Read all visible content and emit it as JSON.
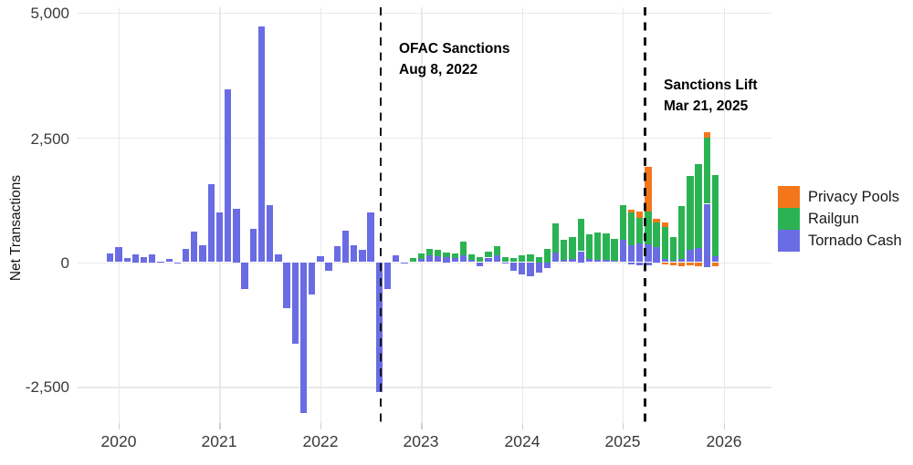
{
  "chart_data": {
    "type": "bar",
    "stacked": true,
    "title": "",
    "ylabel": "Net Transactions",
    "xlabel": "",
    "ylim": [
      -3300,
      5050
    ],
    "grid": true,
    "legend_position": "right",
    "yticks": [
      5000,
      2500,
      0,
      -2500
    ],
    "ytick_labels": [
      "5,000",
      "2,500",
      "0",
      "-2,500"
    ],
    "xticks": [
      2020,
      2021,
      2022,
      2023,
      2024,
      2025,
      2026
    ],
    "legend": [
      {
        "key": "pp",
        "label": "Privacy Pools",
        "color": "#F3761B"
      },
      {
        "key": "rg",
        "label": "Railgun",
        "color": "#2BB353"
      },
      {
        "key": "tc",
        "label": "Tornado Cash",
        "color": "#6A6CE3"
      }
    ],
    "annotations": [
      {
        "name": "ofac-sanctions",
        "date": "2022-08-08",
        "label_line1": "OFAC Sanctions",
        "label_line2": "Aug 8, 2022"
      },
      {
        "name": "sanctions-lift",
        "date": "2025-03-21",
        "label_line1": "Sanctions Lift",
        "label_line2": "Mar 21, 2025"
      }
    ],
    "series_order_bottom_to_top": [
      "tc",
      "rg",
      "pp"
    ],
    "months": [
      {
        "m": "2019-12",
        "segments": [
          [
            "tc",
            170
          ]
        ]
      },
      {
        "m": "2020-01",
        "segments": [
          [
            "tc",
            300
          ]
        ]
      },
      {
        "m": "2020-02",
        "segments": [
          [
            "tc",
            80
          ]
        ]
      },
      {
        "m": "2020-03",
        "segments": [
          [
            "tc",
            155
          ]
        ]
      },
      {
        "m": "2020-04",
        "segments": [
          [
            "tc",
            110
          ]
        ]
      },
      {
        "m": "2020-05",
        "segments": [
          [
            "tc",
            165
          ]
        ]
      },
      {
        "m": "2020-06",
        "segments": [
          [
            "tc",
            15
          ]
        ]
      },
      {
        "m": "2020-07",
        "segments": [
          [
            "tc",
            60
          ]
        ]
      },
      {
        "m": "2020-08",
        "segments": [
          [
            "tc",
            -25
          ]
        ]
      },
      {
        "m": "2020-09",
        "segments": [
          [
            "tc",
            260
          ]
        ]
      },
      {
        "m": "2020-10",
        "segments": [
          [
            "tc",
            610
          ]
        ]
      },
      {
        "m": "2020-11",
        "segments": [
          [
            "tc",
            330
          ]
        ]
      },
      {
        "m": "2020-12",
        "segments": [
          [
            "tc",
            1570
          ]
        ]
      },
      {
        "m": "2021-01",
        "segments": [
          [
            "tc",
            1000
          ]
        ]
      },
      {
        "m": "2021-02",
        "segments": [
          [
            "tc",
            3460
          ]
        ]
      },
      {
        "m": "2021-03",
        "segments": [
          [
            "tc",
            1070
          ]
        ]
      },
      {
        "m": "2021-04",
        "segments": [
          [
            "tc",
            -540
          ]
        ]
      },
      {
        "m": "2021-05",
        "segments": [
          [
            "tc",
            670
          ]
        ]
      },
      {
        "m": "2021-06",
        "segments": [
          [
            "tc",
            4720
          ]
        ]
      },
      {
        "m": "2021-07",
        "segments": [
          [
            "tc",
            1150
          ]
        ]
      },
      {
        "m": "2021-08",
        "segments": [
          [
            "tc",
            150
          ]
        ]
      },
      {
        "m": "2021-09",
        "segments": [
          [
            "tc",
            -920
          ]
        ]
      },
      {
        "m": "2021-10",
        "segments": [
          [
            "tc",
            -1640
          ]
        ]
      },
      {
        "m": "2021-11",
        "segments": [
          [
            "tc",
            -3020
          ]
        ]
      },
      {
        "m": "2021-12",
        "segments": [
          [
            "tc",
            -650
          ]
        ]
      },
      {
        "m": "2022-01",
        "segments": [
          [
            "tc",
            120
          ]
        ]
      },
      {
        "m": "2022-02",
        "segments": [
          [
            "tc",
            -165
          ]
        ]
      },
      {
        "m": "2022-03",
        "segments": [
          [
            "tc",
            325
          ]
        ]
      },
      {
        "m": "2022-04",
        "segments": [
          [
            "tc",
            640
          ]
        ]
      },
      {
        "m": "2022-05",
        "segments": [
          [
            "tc",
            340
          ]
        ]
      },
      {
        "m": "2022-06",
        "segments": [
          [
            "tc",
            245
          ]
        ]
      },
      {
        "m": "2022-07",
        "segments": [
          [
            "tc",
            1000
          ]
        ]
      },
      {
        "m": "2022-08",
        "segments": [
          [
            "tc",
            -2600
          ]
        ]
      },
      {
        "m": "2022-09",
        "segments": [
          [
            "tc",
            -540
          ]
        ]
      },
      {
        "m": "2022-10",
        "segments": [
          [
            "tc",
            135
          ]
        ]
      },
      {
        "m": "2022-11",
        "segments": [
          [
            "tc",
            -30
          ]
        ]
      },
      {
        "m": "2022-12",
        "segments": [
          [
            "rg",
            90
          ]
        ]
      },
      {
        "m": "2023-01",
        "segments": [
          [
            "tc",
            60
          ],
          [
            "rg",
            120
          ]
        ]
      },
      {
        "m": "2023-02",
        "segments": [
          [
            "tc",
            135
          ],
          [
            "rg",
            135
          ]
        ]
      },
      {
        "m": "2023-03",
        "segments": [
          [
            "tc",
            120
          ],
          [
            "rg",
            120
          ]
        ]
      },
      {
        "m": "2023-04",
        "segments": [
          [
            "tc",
            100
          ],
          [
            "rg",
            100
          ]
        ]
      },
      {
        "m": "2023-05",
        "segments": [
          [
            "tc",
            90
          ],
          [
            "rg",
            90
          ]
        ]
      },
      {
        "m": "2023-06",
        "segments": [
          [
            "tc",
            130
          ],
          [
            "rg",
            290
          ]
        ]
      },
      {
        "m": "2023-07",
        "segments": [
          [
            "tc",
            50
          ],
          [
            "rg",
            100
          ]
        ]
      },
      {
        "m": "2023-08",
        "segments": [
          [
            "tc",
            -80
          ],
          [
            "rg",
            105
          ]
        ]
      },
      {
        "m": "2023-09",
        "segments": [
          [
            "tc",
            90
          ],
          [
            "rg",
            125
          ]
        ]
      },
      {
        "m": "2023-10",
        "segments": [
          [
            "tc",
            140
          ],
          [
            "rg",
            180
          ]
        ]
      },
      {
        "m": "2023-11",
        "segments": [
          [
            "tc",
            -30
          ],
          [
            "rg",
            105
          ]
        ]
      },
      {
        "m": "2023-12",
        "segments": [
          [
            "tc",
            -180
          ],
          [
            "rg",
            80
          ]
        ]
      },
      {
        "m": "2024-01",
        "segments": [
          [
            "tc",
            -240
          ],
          [
            "rg",
            130
          ]
        ]
      },
      {
        "m": "2024-02",
        "segments": [
          [
            "tc",
            -290
          ],
          [
            "rg",
            150
          ]
        ]
      },
      {
        "m": "2024-03",
        "segments": [
          [
            "tc",
            -210
          ],
          [
            "rg",
            100
          ]
        ]
      },
      {
        "m": "2024-04",
        "segments": [
          [
            "tc",
            -120
          ],
          [
            "rg",
            265
          ]
        ]
      },
      {
        "m": "2024-05",
        "segments": [
          [
            "tc",
            190
          ],
          [
            "rg",
            585
          ]
        ]
      },
      {
        "m": "2024-06",
        "segments": [
          [
            "tc",
            40
          ],
          [
            "rg",
            400
          ]
        ]
      },
      {
        "m": "2024-07",
        "segments": [
          [
            "tc",
            65
          ],
          [
            "rg",
            435
          ]
        ]
      },
      {
        "m": "2024-08",
        "segments": [
          [
            "tc",
            220
          ],
          [
            "rg",
            645
          ]
        ]
      },
      {
        "m": "2024-09",
        "segments": [
          [
            "tc",
            70
          ],
          [
            "rg",
            490
          ]
        ]
      },
      {
        "m": "2024-10",
        "segments": [
          [
            "tc",
            50
          ],
          [
            "rg",
            540
          ]
        ]
      },
      {
        "m": "2024-11",
        "segments": [
          [
            "tc",
            50
          ],
          [
            "rg",
            525
          ]
        ]
      },
      {
        "m": "2024-12",
        "segments": [
          [
            "tc",
            30
          ],
          [
            "rg",
            430
          ]
        ]
      },
      {
        "m": "2025-01",
        "segments": [
          [
            "tc",
            440
          ],
          [
            "rg",
            700
          ]
        ]
      },
      {
        "m": "2025-02",
        "segments": [
          [
            "tc",
            340
          ],
          [
            "rg",
            660
          ],
          [
            "pp",
            60
          ],
          [
            "tc",
            -50
          ]
        ]
      },
      {
        "m": "2025-03",
        "segments": [
          [
            "tc",
            370
          ],
          [
            "rg",
            510
          ],
          [
            "pp",
            140
          ],
          [
            "tc",
            -60
          ]
        ]
      },
      {
        "m": "2025-04",
        "segments": [
          [
            "tc",
            360
          ],
          [
            "rg",
            650
          ],
          [
            "pp",
            900
          ],
          [
            "tc",
            -55
          ]
        ]
      },
      {
        "m": "2025-05",
        "segments": [
          [
            "tc",
            310
          ],
          [
            "rg",
            480
          ],
          [
            "pp",
            75
          ]
        ]
      },
      {
        "m": "2025-06",
        "segments": [
          [
            "tc",
            65
          ],
          [
            "rg",
            645
          ],
          [
            "pp",
            90
          ],
          [
            "pp",
            -45
          ]
        ]
      },
      {
        "m": "2025-07",
        "segments": [
          [
            "tc",
            35
          ],
          [
            "rg",
            475
          ],
          [
            "pp",
            -55
          ]
        ]
      },
      {
        "m": "2025-08",
        "segments": [
          [
            "tc",
            60
          ],
          [
            "rg",
            1065
          ],
          [
            "pp",
            -85
          ]
        ]
      },
      {
        "m": "2025-09",
        "segments": [
          [
            "tc",
            240
          ],
          [
            "rg",
            1490
          ],
          [
            "pp",
            -70
          ]
        ]
      },
      {
        "m": "2025-10",
        "segments": [
          [
            "tc",
            285
          ],
          [
            "rg",
            1680
          ],
          [
            "pp",
            -85
          ]
        ]
      },
      {
        "m": "2025-11",
        "segments": [
          [
            "tc",
            1170
          ],
          [
            "rg",
            1320
          ],
          [
            "pp",
            110
          ],
          [
            "tc",
            -100
          ]
        ]
      },
      {
        "m": "2025-12",
        "segments": [
          [
            "tc",
            115
          ],
          [
            "rg",
            1640
          ],
          [
            "pp",
            -75
          ]
        ]
      }
    ]
  }
}
